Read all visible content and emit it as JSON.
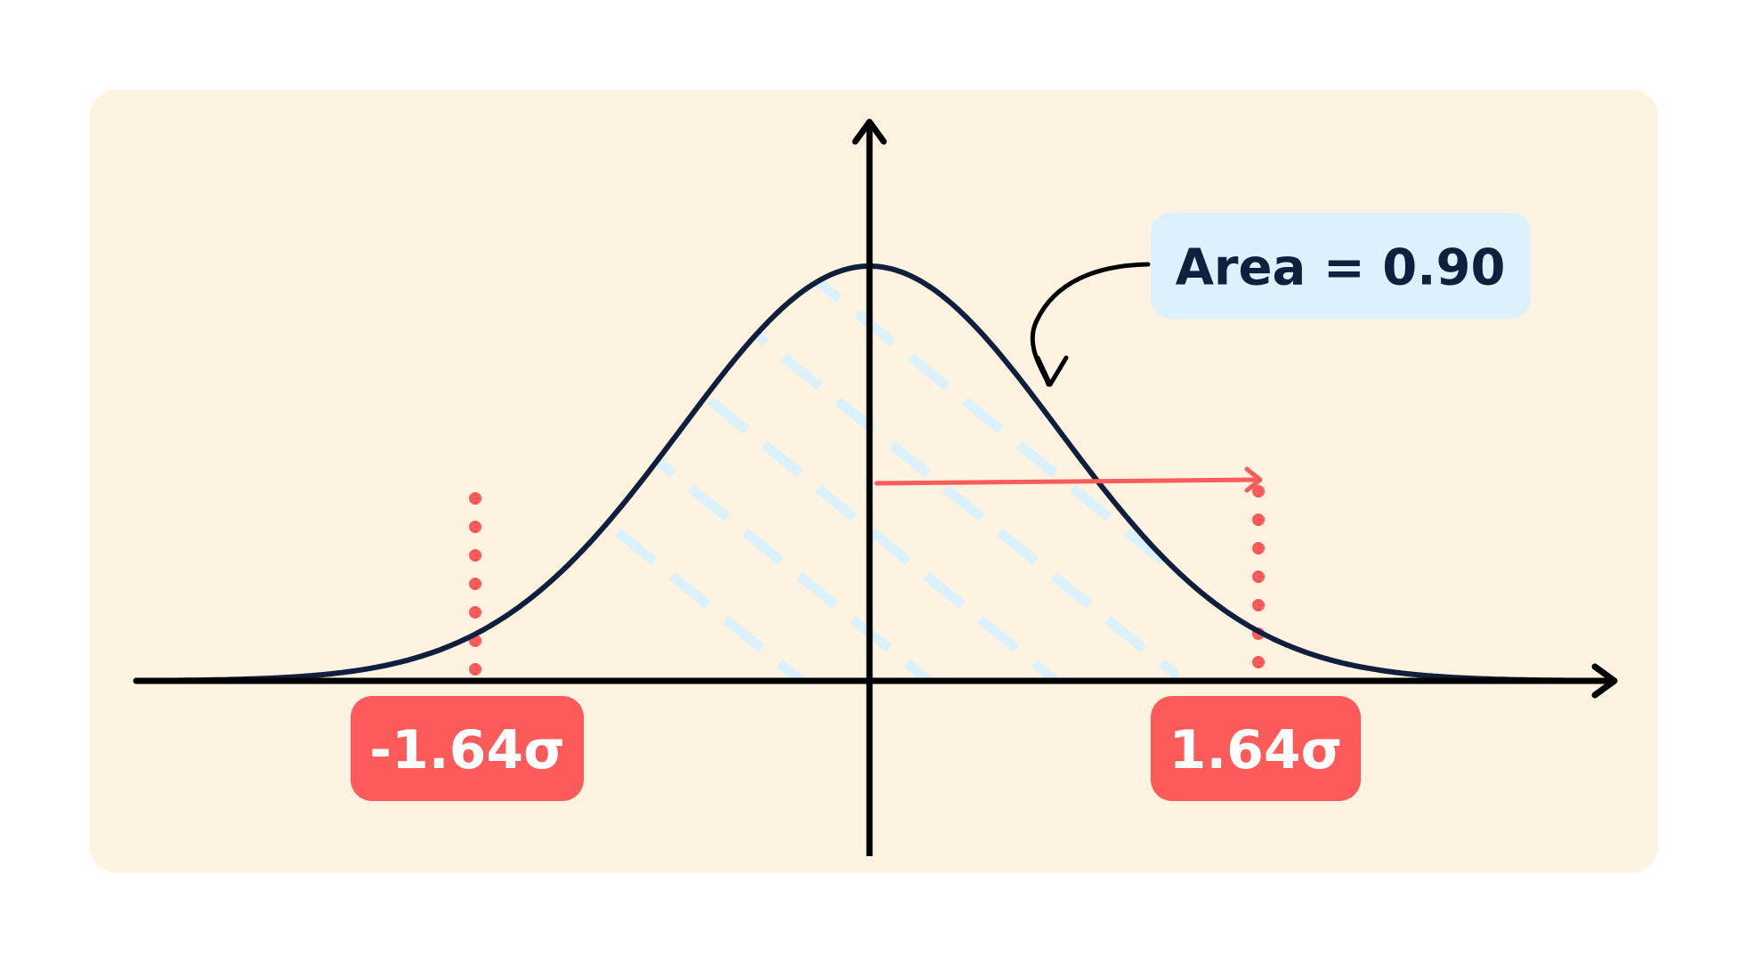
{
  "colors": {
    "background": "#ffffff",
    "panel": "#fdf3e0",
    "curve": "#0f1f3d",
    "axis": "#000000",
    "hatch": "#dbf1fb",
    "accent_red": "#fd5a5a",
    "callout_bg": "#dcf1fb",
    "callout_text": "#0f1f3d",
    "badge_text": "#ffffff"
  },
  "callout": {
    "text": "Area = 0.90"
  },
  "labels": {
    "left_bound": "-1.64σ",
    "right_bound": "1.64σ"
  },
  "distribution": {
    "type": "normal",
    "mean": 0,
    "lower_bound_sigma": -1.64,
    "upper_bound_sigma": 1.64,
    "shaded_area": 0.9
  }
}
